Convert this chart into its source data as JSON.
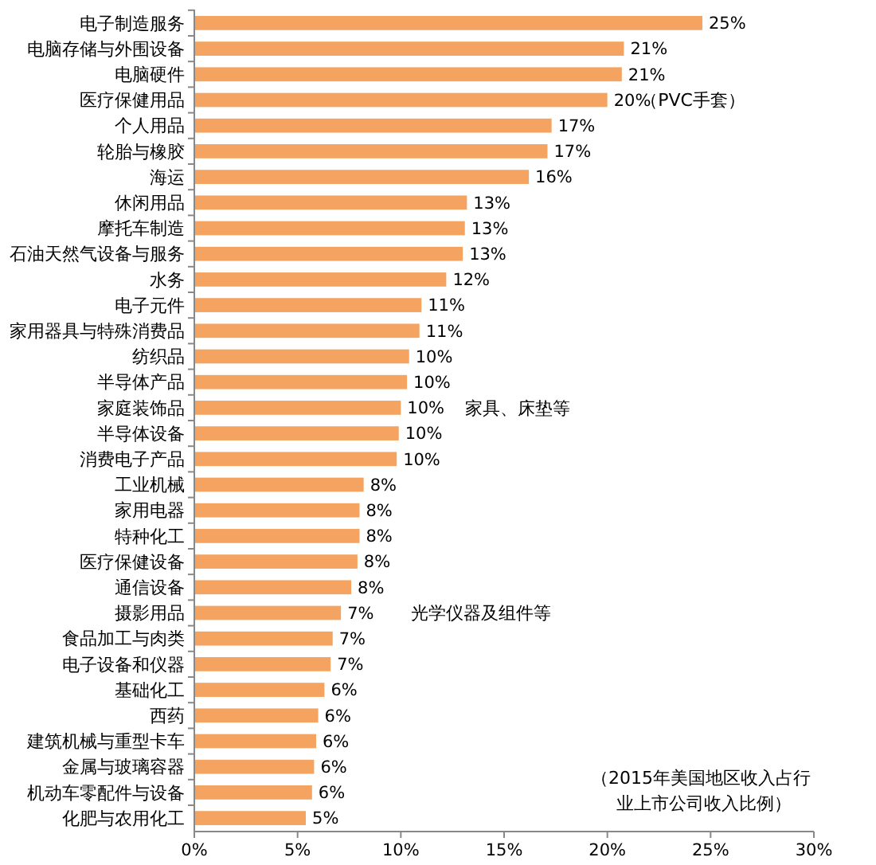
{
  "chart_data": {
    "type": "bar",
    "orientation": "horizontal",
    "color": "#f4a460",
    "categories": [
      "电子制造服务",
      "电脑存储与外围设备",
      "电脑硬件",
      "医疗保健用品",
      "个人用品",
      "轮胎与橡胶",
      "海运",
      "休闲用品",
      "摩托车制造",
      "石油天然气设备与服务",
      "水务",
      "电子元件",
      "家用器具与特殊消费品",
      "纺织品",
      "半导体产品",
      "家庭装饰品",
      "半导体设备",
      "消费电子产品",
      "工业机械",
      "家用电器",
      "特种化工",
      "医疗保健设备",
      "通信设备",
      "摄影用品",
      "食品加工与肉类",
      "电子设备和仪器",
      "基础化工",
      "西药",
      "建筑机械与重型卡车",
      "金属与玻璃容器",
      "机动车零配件与设备",
      "化肥与农用化工"
    ],
    "values": [
      24.6,
      20.8,
      20.7,
      20.0,
      17.3,
      17.1,
      16.2,
      13.2,
      13.1,
      13.0,
      12.2,
      11.0,
      10.9,
      10.4,
      10.3,
      10.0,
      9.9,
      9.8,
      8.2,
      8.0,
      8.0,
      7.9,
      7.6,
      7.1,
      6.7,
      6.6,
      6.3,
      6.0,
      5.9,
      5.8,
      5.7,
      5.4
    ],
    "value_labels": [
      "25%",
      "21%",
      "21%",
      "20%",
      "17%",
      "17%",
      "16%",
      "13%",
      "13%",
      "13%",
      "12%",
      "11%",
      "11%",
      "10%",
      "10%",
      "10%",
      "10%",
      "10%",
      "8%",
      "8%",
      "8%",
      "8%",
      "8%",
      "7%",
      "7%",
      "7%",
      "6%",
      "6%",
      "6%",
      "6%",
      "6%",
      "5%"
    ],
    "xlim": [
      0,
      30
    ],
    "xticks": [
      {
        "value": 0,
        "label": "0%"
      },
      {
        "value": 5,
        "label": "5%"
      },
      {
        "value": 10,
        "label": "10%"
      },
      {
        "value": 15,
        "label": "15%"
      },
      {
        "value": 20,
        "label": "20%"
      },
      {
        "value": 25,
        "label": "25%"
      },
      {
        "value": 30,
        "label": "30%"
      }
    ],
    "grid": false,
    "annotations": [
      "（PVC手套）",
      "家具、床垫等",
      "光学仪器及组件等",
      "（2015年美国地区收入占行业上市公司收入比例）"
    ]
  }
}
